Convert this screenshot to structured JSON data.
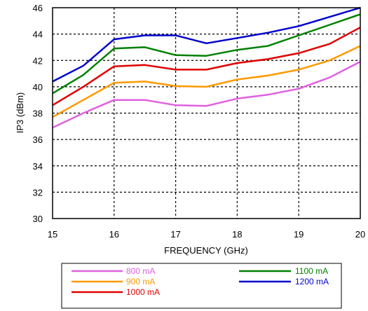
{
  "chart_data": {
    "type": "line",
    "xlabel": "FREQUENCY (GHz)",
    "ylabel": "IP3 (dBm)",
    "xlim": [
      15,
      20
    ],
    "ylim": [
      30,
      46
    ],
    "xticks": [
      15,
      16,
      17,
      18,
      19,
      20
    ],
    "yticks": [
      30,
      32,
      34,
      36,
      38,
      40,
      42,
      44,
      46
    ],
    "grid": "dotted",
    "legend_position": "bottom",
    "x": [
      15,
      15.5,
      16,
      16.5,
      17,
      17.5,
      18,
      18.5,
      19,
      19.5,
      20
    ],
    "series": [
      {
        "name": "800 mA",
        "color": "#e060e0",
        "values": [
          36.9,
          38.0,
          39.0,
          39.0,
          38.6,
          38.55,
          39.1,
          39.4,
          39.85,
          40.7,
          41.9
        ]
      },
      {
        "name": "900 mA",
        "color": "#ff9900",
        "values": [
          37.7,
          39.0,
          40.3,
          40.4,
          40.05,
          40.0,
          40.55,
          40.85,
          41.3,
          42.0,
          43.1
        ]
      },
      {
        "name": "1000 mA",
        "color": "#e00000",
        "values": [
          38.6,
          40.0,
          41.55,
          41.65,
          41.3,
          41.3,
          41.8,
          42.1,
          42.55,
          43.25,
          44.5
        ]
      },
      {
        "name": "1100 mA",
        "color": "#008000",
        "values": [
          39.5,
          40.9,
          42.9,
          43.0,
          42.4,
          42.35,
          42.8,
          43.1,
          43.9,
          44.7,
          45.5
        ]
      },
      {
        "name": "1200 mA",
        "color": "#0000cc",
        "values": [
          40.4,
          41.6,
          43.6,
          43.9,
          43.9,
          43.3,
          43.7,
          44.1,
          44.6,
          45.3,
          46.0
        ]
      }
    ]
  }
}
